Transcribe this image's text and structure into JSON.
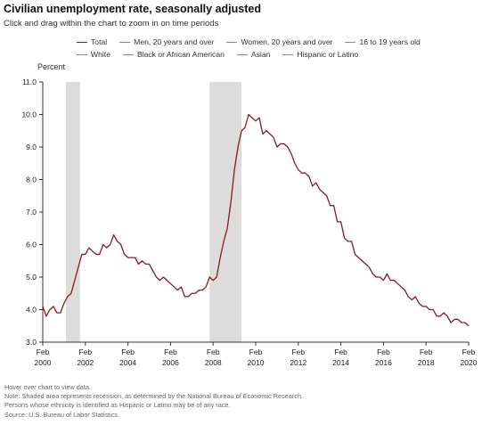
{
  "title": "Civilian unemployment rate, seasonally adjusted",
  "subtitle": "Click and drag within the chart to zoom in on time periods",
  "legend": {
    "row1": [
      {
        "label": "Total",
        "color": "#8b1a1a",
        "active": true
      },
      {
        "label": "Men, 20 years and over",
        "color": "#888888",
        "active": false
      },
      {
        "label": "Women, 20 years and over",
        "color": "#888888",
        "active": false
      },
      {
        "label": "16 to 19 years old",
        "color": "#888888",
        "active": false
      }
    ],
    "row2": [
      {
        "label": "White",
        "color": "#888888",
        "active": false
      },
      {
        "label": "Black or African American",
        "color": "#888888",
        "active": false
      },
      {
        "label": "Asian",
        "color": "#888888",
        "active": false
      },
      {
        "label": "Hispanic or Latino",
        "color": "#888888",
        "active": false
      }
    ]
  },
  "footnotes": [
    "Hover over chart to view data.",
    "Note: Shaded area represents recession, as determined by the National Bureau of Economic Research.",
    "Persons whose ethnicity is identified as Hispanic or Latino may be of any race.",
    "Source: U.S. Bureau of Labor Statistics."
  ],
  "colors": {
    "total_line": "#8b1a1a",
    "recession": "#dcdcdc",
    "axis": "#333333"
  },
  "chart_data": {
    "type": "line",
    "ylabel": "Percent",
    "ylim": [
      3.0,
      11.0
    ],
    "yticks": [
      "3.0",
      "4.0",
      "5.0",
      "6.0",
      "7.0",
      "8.0",
      "9.0",
      "10.0",
      "11.0"
    ],
    "xlim": [
      "2000-02",
      "2020-02"
    ],
    "xticks": [
      {
        "month": "Feb",
        "year": "2000"
      },
      {
        "month": "Feb",
        "year": "2002"
      },
      {
        "month": "Feb",
        "year": "2004"
      },
      {
        "month": "Feb",
        "year": "2006"
      },
      {
        "month": "Feb",
        "year": "2008"
      },
      {
        "month": "Feb",
        "year": "2010"
      },
      {
        "month": "Feb",
        "year": "2012"
      },
      {
        "month": "Feb",
        "year": "2014"
      },
      {
        "month": "Feb",
        "year": "2016"
      },
      {
        "month": "Feb",
        "year": "2018"
      },
      {
        "month": "Feb",
        "year": "2020"
      }
    ],
    "recessions": [
      {
        "start": "2001-03",
        "end": "2001-11"
      },
      {
        "start": "2007-12",
        "end": "2009-06"
      }
    ],
    "series": [
      {
        "name": "Total",
        "points": [
          [
            "2000-02",
            4.1
          ],
          [
            "2000-04",
            3.8
          ],
          [
            "2000-06",
            4.0
          ],
          [
            "2000-08",
            4.1
          ],
          [
            "2000-10",
            3.9
          ],
          [
            "2000-12",
            3.9
          ],
          [
            "2001-02",
            4.2
          ],
          [
            "2001-04",
            4.4
          ],
          [
            "2001-06",
            4.5
          ],
          [
            "2001-08",
            4.9
          ],
          [
            "2001-10",
            5.3
          ],
          [
            "2001-12",
            5.7
          ],
          [
            "2002-02",
            5.7
          ],
          [
            "2002-04",
            5.9
          ],
          [
            "2002-06",
            5.8
          ],
          [
            "2002-08",
            5.7
          ],
          [
            "2002-10",
            5.7
          ],
          [
            "2002-12",
            6.0
          ],
          [
            "2003-02",
            5.9
          ],
          [
            "2003-04",
            6.0
          ],
          [
            "2003-06",
            6.3
          ],
          [
            "2003-08",
            6.1
          ],
          [
            "2003-10",
            6.0
          ],
          [
            "2003-12",
            5.7
          ],
          [
            "2004-02",
            5.6
          ],
          [
            "2004-04",
            5.6
          ],
          [
            "2004-06",
            5.6
          ],
          [
            "2004-08",
            5.4
          ],
          [
            "2004-10",
            5.5
          ],
          [
            "2004-12",
            5.4
          ],
          [
            "2005-02",
            5.4
          ],
          [
            "2005-04",
            5.2
          ],
          [
            "2005-06",
            5.0
          ],
          [
            "2005-08",
            4.9
          ],
          [
            "2005-10",
            5.0
          ],
          [
            "2005-12",
            4.9
          ],
          [
            "2006-02",
            4.8
          ],
          [
            "2006-04",
            4.7
          ],
          [
            "2006-06",
            4.6
          ],
          [
            "2006-08",
            4.7
          ],
          [
            "2006-10",
            4.4
          ],
          [
            "2006-12",
            4.4
          ],
          [
            "2007-02",
            4.5
          ],
          [
            "2007-04",
            4.5
          ],
          [
            "2007-06",
            4.6
          ],
          [
            "2007-08",
            4.6
          ],
          [
            "2007-10",
            4.7
          ],
          [
            "2007-12",
            5.0
          ],
          [
            "2008-02",
            4.9
          ],
          [
            "2008-04",
            5.0
          ],
          [
            "2008-06",
            5.6
          ],
          [
            "2008-08",
            6.1
          ],
          [
            "2008-10",
            6.5
          ],
          [
            "2008-12",
            7.3
          ],
          [
            "2009-02",
            8.3
          ],
          [
            "2009-04",
            9.0
          ],
          [
            "2009-06",
            9.5
          ],
          [
            "2009-08",
            9.6
          ],
          [
            "2009-10",
            10.0
          ],
          [
            "2009-12",
            9.9
          ],
          [
            "2010-02",
            9.8
          ],
          [
            "2010-04",
            9.9
          ],
          [
            "2010-06",
            9.4
          ],
          [
            "2010-08",
            9.5
          ],
          [
            "2010-10",
            9.4
          ],
          [
            "2010-12",
            9.3
          ],
          [
            "2011-02",
            9.0
          ],
          [
            "2011-04",
            9.1
          ],
          [
            "2011-06",
            9.1
          ],
          [
            "2011-08",
            9.0
          ],
          [
            "2011-10",
            8.8
          ],
          [
            "2011-12",
            8.5
          ],
          [
            "2012-02",
            8.3
          ],
          [
            "2012-04",
            8.2
          ],
          [
            "2012-06",
            8.2
          ],
          [
            "2012-08",
            8.1
          ],
          [
            "2012-10",
            7.8
          ],
          [
            "2012-12",
            7.9
          ],
          [
            "2013-02",
            7.7
          ],
          [
            "2013-04",
            7.6
          ],
          [
            "2013-06",
            7.5
          ],
          [
            "2013-08",
            7.2
          ],
          [
            "2013-10",
            7.2
          ],
          [
            "2013-12",
            6.7
          ],
          [
            "2014-02",
            6.7
          ],
          [
            "2014-04",
            6.2
          ],
          [
            "2014-06",
            6.1
          ],
          [
            "2014-08",
            6.1
          ],
          [
            "2014-10",
            5.7
          ],
          [
            "2014-12",
            5.6
          ],
          [
            "2015-02",
            5.5
          ],
          [
            "2015-04",
            5.4
          ],
          [
            "2015-06",
            5.3
          ],
          [
            "2015-08",
            5.1
          ],
          [
            "2015-10",
            5.0
          ],
          [
            "2015-12",
            5.0
          ],
          [
            "2016-02",
            4.9
          ],
          [
            "2016-04",
            5.1
          ],
          [
            "2016-06",
            4.9
          ],
          [
            "2016-08",
            4.9
          ],
          [
            "2016-10",
            4.8
          ],
          [
            "2016-12",
            4.7
          ],
          [
            "2017-02",
            4.6
          ],
          [
            "2017-04",
            4.4
          ],
          [
            "2017-06",
            4.3
          ],
          [
            "2017-08",
            4.4
          ],
          [
            "2017-10",
            4.2
          ],
          [
            "2017-12",
            4.1
          ],
          [
            "2018-02",
            4.1
          ],
          [
            "2018-04",
            4.0
          ],
          [
            "2018-06",
            4.0
          ],
          [
            "2018-08",
            3.8
          ],
          [
            "2018-10",
            3.8
          ],
          [
            "2018-12",
            3.9
          ],
          [
            "2019-02",
            3.8
          ],
          [
            "2019-04",
            3.6
          ],
          [
            "2019-06",
            3.7
          ],
          [
            "2019-08",
            3.7
          ],
          [
            "2019-10",
            3.6
          ],
          [
            "2019-12",
            3.6
          ],
          [
            "2020-02",
            3.5
          ]
        ]
      }
    ],
    "grid": false,
    "legend_position": "top"
  }
}
